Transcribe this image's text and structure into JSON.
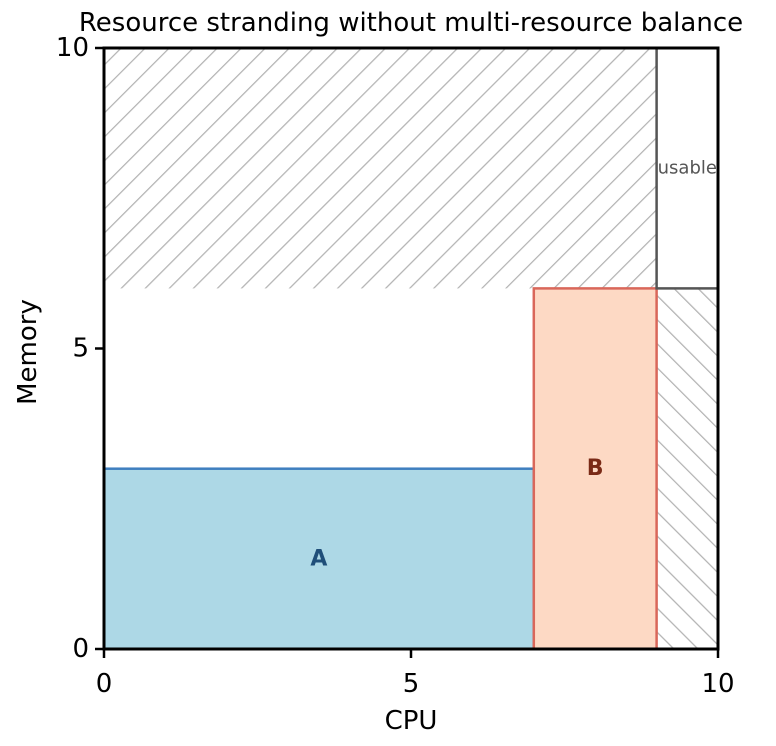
{
  "chart_data": {
    "type": "area",
    "title": "Resource stranding without multi-resource balance",
    "xlabel": "CPU",
    "ylabel": "Memory",
    "xlim": [
      0,
      10
    ],
    "ylim": [
      0,
      10
    ],
    "xticks": [
      0,
      5,
      10
    ],
    "yticks": [
      0,
      5,
      10
    ],
    "grid": false,
    "legend": "none",
    "regions": [
      {
        "name": "A",
        "label": "A",
        "x": [
          0,
          7
        ],
        "y": [
          0,
          3
        ],
        "fill": "#add8e6",
        "stroke": "#3f7fbf",
        "label_color": "#1f4e79",
        "label_at": [
          3.5,
          1.5
        ]
      },
      {
        "name": "B",
        "label": "B",
        "x": [
          7,
          9
        ],
        "y": [
          0,
          6
        ],
        "fill": "#fdd9c4",
        "stroke": "#d9675a",
        "label_color": "#7a2a16",
        "label_at": [
          8,
          3
        ]
      }
    ],
    "stranded_regions": [
      {
        "x": [
          0,
          9
        ],
        "y": [
          6,
          10
        ],
        "hatch": "forward",
        "color": "#b3b3b3"
      },
      {
        "x": [
          9,
          10
        ],
        "y": [
          0,
          6
        ],
        "hatch": "backward",
        "color": "#b3b3b3"
      }
    ],
    "usable_region": {
      "label": "usable",
      "x": [
        9,
        10
      ],
      "y": [
        6,
        10
      ],
      "stroke": "#555555",
      "label_color": "#555555",
      "label_at": [
        9.5,
        8
      ]
    }
  }
}
